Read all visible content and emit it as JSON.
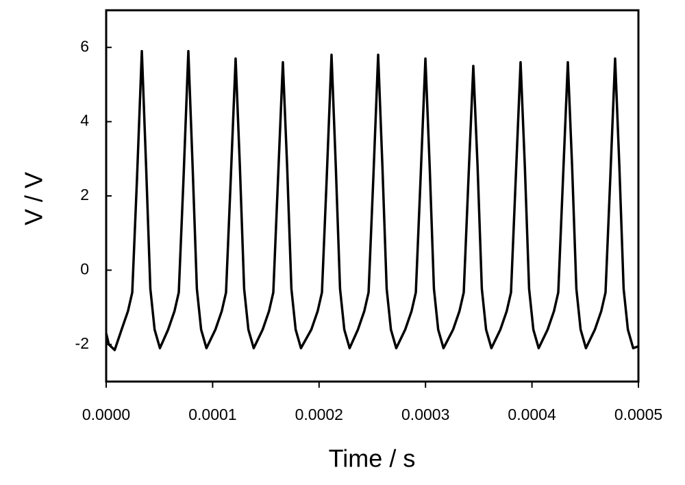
{
  "chart_data": {
    "type": "line",
    "xlabel": "Time / s",
    "ylabel": "V / V",
    "xlim": [
      0,
      0.0005
    ],
    "ylim": [
      -3,
      7
    ],
    "xticks": [
      {
        "value": 0,
        "label": "0.0000"
      },
      {
        "value": 0.0001,
        "label": "0.0001"
      },
      {
        "value": 0.0002,
        "label": "0.0002"
      },
      {
        "value": 0.0003,
        "label": "0.0003"
      },
      {
        "value": 0.0004,
        "label": "0.0004"
      },
      {
        "value": 0.0005,
        "label": "0.0005"
      }
    ],
    "yticks": [
      -2,
      0,
      2,
      4,
      6
    ],
    "series": [
      {
        "color": "#000000",
        "x": [
          0,
          2.5e-06,
          8e-06,
          1.45e-05,
          2.05e-05,
          2.45e-05,
          2.9e-05,
          3.35e-05,
          3.75e-05,
          4.15e-05,
          4.55e-05,
          5.05e-05,
          5.82e-05,
          6.42e-05,
          6.82e-05,
          7.27e-05,
          7.72e-05,
          8.12e-05,
          8.52e-05,
          8.92e-05,
          9.42e-05,
          0.0001026,
          0.0001086,
          0.0001126,
          0.0001171,
          0.0001216,
          0.0001256,
          0.0001296,
          0.0001336,
          0.0001386,
          0.000147,
          0.000153,
          0.000157,
          0.0001615,
          0.000166,
          0.00017,
          0.000174,
          0.000178,
          0.000183,
          0.0001927,
          0.0001987,
          0.0002027,
          0.0002072,
          0.0002117,
          0.0002157,
          0.0002197,
          0.0002237,
          0.0002287,
          0.0002365,
          0.0002425,
          0.0002465,
          0.000251,
          0.0002555,
          0.0002595,
          0.0002635,
          0.0002675,
          0.0002725,
          0.0002809,
          0.0002869,
          0.0002909,
          0.0002954,
          0.0002999,
          0.0003039,
          0.0003079,
          0.0003119,
          0.0003169,
          0.0003259,
          0.0003319,
          0.0003359,
          0.0003404,
          0.0003449,
          0.0003489,
          0.0003529,
          0.0003569,
          0.0003619,
          0.0003703,
          0.0003763,
          0.0003803,
          0.0003848,
          0.0003893,
          0.0003933,
          0.0003973,
          0.0004013,
          0.0004063,
          0.0004147,
          0.0004207,
          0.0004247,
          0.0004292,
          0.0004337,
          0.0004377,
          0.0004417,
          0.0004457,
          0.0004507,
          0.0004591,
          0.0004651,
          0.0004691,
          0.0004736,
          0.0004781,
          0.0004821,
          0.0004861,
          0.0004901,
          0.0004951,
          0.0005
        ],
        "values": [
          -1.7,
          -2.0,
          -2.15,
          -1.6,
          -1.1,
          -0.6,
          2.5,
          5.9,
          2.8,
          -0.5,
          -1.6,
          -2.1,
          -1.6,
          -1.1,
          -0.6,
          2.5,
          5.9,
          2.8,
          -0.5,
          -1.6,
          -2.1,
          -1.6,
          -1.1,
          -0.6,
          2.5,
          5.7,
          2.8,
          -0.5,
          -1.6,
          -2.1,
          -1.6,
          -1.1,
          -0.6,
          2.5,
          5.6,
          2.8,
          -0.5,
          -1.6,
          -2.1,
          -1.6,
          -1.1,
          -0.6,
          2.5,
          5.8,
          2.8,
          -0.5,
          -1.6,
          -2.1,
          -1.6,
          -1.1,
          -0.6,
          2.5,
          5.8,
          2.8,
          -0.5,
          -1.6,
          -2.1,
          -1.6,
          -1.1,
          -0.6,
          2.5,
          5.7,
          2.8,
          -0.5,
          -1.6,
          -2.1,
          -1.6,
          -1.1,
          -0.6,
          2.5,
          5.5,
          2.8,
          -0.5,
          -1.6,
          -2.1,
          -1.6,
          -1.1,
          -0.6,
          2.5,
          5.6,
          2.8,
          -0.5,
          -1.6,
          -2.1,
          -1.6,
          -1.1,
          -0.6,
          2.5,
          5.6,
          2.8,
          -0.5,
          -1.6,
          -2.1,
          -1.6,
          -1.1,
          -0.6,
          2.5,
          5.7,
          2.8,
          -0.5,
          -1.6,
          -2.1,
          -2.05
        ]
      }
    ]
  }
}
